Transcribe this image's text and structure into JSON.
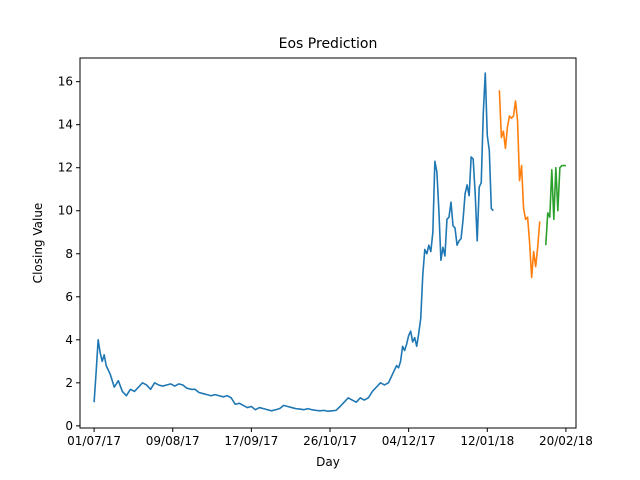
{
  "chart_data": {
    "type": "line",
    "title": "Eos Prediction",
    "xlabel": "Day",
    "ylabel": "Closing Value",
    "xlim": [
      "2017-06-24",
      "2018-02-25"
    ],
    "ylim": [
      -0.1,
      17.1
    ],
    "grid": false,
    "legend": "none",
    "x_ticks": [
      {
        "date": "2017-07-01",
        "label": "01/07/17"
      },
      {
        "date": "2017-08-09",
        "label": "09/08/17"
      },
      {
        "date": "2017-09-17",
        "label": "17/09/17"
      },
      {
        "date": "2017-10-26",
        "label": "26/10/17"
      },
      {
        "date": "2017-12-04",
        "label": "04/12/17"
      },
      {
        "date": "2018-01-12",
        "label": "12/01/18"
      },
      {
        "date": "2018-02-20",
        "label": "20/02/18"
      }
    ],
    "y_ticks": [
      0,
      2,
      4,
      6,
      8,
      10,
      12,
      14,
      16
    ],
    "series": [
      {
        "color": "#1f77b4",
        "points": [
          [
            "2017-07-01",
            1.1
          ],
          [
            "2017-07-02",
            2.5
          ],
          [
            "2017-07-03",
            4.0
          ],
          [
            "2017-07-04",
            3.4
          ],
          [
            "2017-07-05",
            3.0
          ],
          [
            "2017-07-06",
            3.3
          ],
          [
            "2017-07-07",
            2.8
          ],
          [
            "2017-07-09",
            2.4
          ],
          [
            "2017-07-11",
            1.8
          ],
          [
            "2017-07-13",
            2.1
          ],
          [
            "2017-07-15",
            1.6
          ],
          [
            "2017-07-17",
            1.4
          ],
          [
            "2017-07-19",
            1.7
          ],
          [
            "2017-07-21",
            1.6
          ],
          [
            "2017-07-23",
            1.8
          ],
          [
            "2017-07-25",
            2.0
          ],
          [
            "2017-07-27",
            1.9
          ],
          [
            "2017-07-29",
            1.7
          ],
          [
            "2017-07-31",
            2.0
          ],
          [
            "2017-08-02",
            1.9
          ],
          [
            "2017-08-04",
            1.85
          ],
          [
            "2017-08-06",
            1.9
          ],
          [
            "2017-08-08",
            1.95
          ],
          [
            "2017-08-10",
            1.85
          ],
          [
            "2017-08-12",
            1.95
          ],
          [
            "2017-08-14",
            1.9
          ],
          [
            "2017-08-16",
            1.75
          ],
          [
            "2017-08-18",
            1.7
          ],
          [
            "2017-08-20",
            1.7
          ],
          [
            "2017-08-22",
            1.55
          ],
          [
            "2017-08-24",
            1.5
          ],
          [
            "2017-08-26",
            1.45
          ],
          [
            "2017-08-28",
            1.4
          ],
          [
            "2017-08-30",
            1.45
          ],
          [
            "2017-09-01",
            1.4
          ],
          [
            "2017-09-03",
            1.35
          ],
          [
            "2017-09-05",
            1.4
          ],
          [
            "2017-09-07",
            1.3
          ],
          [
            "2017-09-09",
            1.0
          ],
          [
            "2017-09-11",
            1.05
          ],
          [
            "2017-09-13",
            0.95
          ],
          [
            "2017-09-15",
            0.85
          ],
          [
            "2017-09-17",
            0.9
          ],
          [
            "2017-09-19",
            0.75
          ],
          [
            "2017-09-21",
            0.85
          ],
          [
            "2017-09-23",
            0.8
          ],
          [
            "2017-09-25",
            0.75
          ],
          [
            "2017-09-27",
            0.7
          ],
          [
            "2017-09-29",
            0.75
          ],
          [
            "2017-10-01",
            0.8
          ],
          [
            "2017-10-03",
            0.95
          ],
          [
            "2017-10-05",
            0.9
          ],
          [
            "2017-10-07",
            0.85
          ],
          [
            "2017-10-09",
            0.8
          ],
          [
            "2017-10-11",
            0.78
          ],
          [
            "2017-10-13",
            0.75
          ],
          [
            "2017-10-15",
            0.8
          ],
          [
            "2017-10-17",
            0.75
          ],
          [
            "2017-10-19",
            0.72
          ],
          [
            "2017-10-21",
            0.7
          ],
          [
            "2017-10-23",
            0.72
          ],
          [
            "2017-10-25",
            0.68
          ],
          [
            "2017-10-27",
            0.7
          ],
          [
            "2017-10-29",
            0.72
          ],
          [
            "2017-10-31",
            0.9
          ],
          [
            "2017-11-02",
            1.1
          ],
          [
            "2017-11-04",
            1.3
          ],
          [
            "2017-11-06",
            1.2
          ],
          [
            "2017-11-08",
            1.1
          ],
          [
            "2017-11-10",
            1.3
          ],
          [
            "2017-11-12",
            1.2
          ],
          [
            "2017-11-14",
            1.3
          ],
          [
            "2017-11-16",
            1.6
          ],
          [
            "2017-11-18",
            1.8
          ],
          [
            "2017-11-20",
            2.0
          ],
          [
            "2017-11-22",
            1.9
          ],
          [
            "2017-11-24",
            2.0
          ],
          [
            "2017-11-26",
            2.4
          ],
          [
            "2017-11-28",
            2.8
          ],
          [
            "2017-11-29",
            2.7
          ],
          [
            "2017-11-30",
            3.0
          ],
          [
            "2017-12-01",
            3.7
          ],
          [
            "2017-12-02",
            3.5
          ],
          [
            "2017-12-03",
            3.8
          ],
          [
            "2017-12-04",
            4.2
          ],
          [
            "2017-12-05",
            4.4
          ],
          [
            "2017-12-06",
            3.9
          ],
          [
            "2017-12-07",
            4.1
          ],
          [
            "2017-12-08",
            3.7
          ],
          [
            "2017-12-09",
            4.3
          ],
          [
            "2017-12-10",
            5.0
          ],
          [
            "2017-12-11",
            7.0
          ],
          [
            "2017-12-12",
            8.2
          ],
          [
            "2017-12-13",
            8.0
          ],
          [
            "2017-12-14",
            8.4
          ],
          [
            "2017-12-15",
            8.1
          ],
          [
            "2017-12-16",
            9.0
          ],
          [
            "2017-12-17",
            12.3
          ],
          [
            "2017-12-18",
            11.8
          ],
          [
            "2017-12-19",
            10.0
          ],
          [
            "2017-12-20",
            7.7
          ],
          [
            "2017-12-21",
            8.3
          ],
          [
            "2017-12-22",
            7.9
          ],
          [
            "2017-12-23",
            9.6
          ],
          [
            "2017-12-24",
            9.7
          ],
          [
            "2017-12-25",
            10.4
          ],
          [
            "2017-12-26",
            9.3
          ],
          [
            "2017-12-27",
            9.2
          ],
          [
            "2017-12-28",
            8.4
          ],
          [
            "2017-12-29",
            8.6
          ],
          [
            "2017-12-30",
            8.7
          ],
          [
            "2017-12-31",
            9.6
          ],
          [
            "2018-01-01",
            10.8
          ],
          [
            "2018-01-02",
            11.2
          ],
          [
            "2018-01-03",
            10.7
          ],
          [
            "2018-01-04",
            12.5
          ],
          [
            "2018-01-05",
            12.4
          ],
          [
            "2018-01-06",
            10.8
          ],
          [
            "2018-01-07",
            8.6
          ],
          [
            "2018-01-08",
            11.1
          ],
          [
            "2018-01-09",
            11.3
          ],
          [
            "2018-01-10",
            14.5
          ],
          [
            "2018-01-11",
            16.4
          ],
          [
            "2018-01-12",
            13.5
          ],
          [
            "2018-01-13",
            12.8
          ],
          [
            "2018-01-14",
            10.1
          ],
          [
            "2018-01-15",
            10.0
          ]
        ]
      },
      {
        "color": "#ff7f0e",
        "points": [
          [
            "2018-01-18",
            15.6
          ],
          [
            "2018-01-19",
            13.4
          ],
          [
            "2018-01-20",
            13.7
          ],
          [
            "2018-01-21",
            12.9
          ],
          [
            "2018-01-22",
            13.9
          ],
          [
            "2018-01-23",
            14.4
          ],
          [
            "2018-01-24",
            14.3
          ],
          [
            "2018-01-25",
            14.4
          ],
          [
            "2018-01-26",
            15.1
          ],
          [
            "2018-01-27",
            14.2
          ],
          [
            "2018-01-28",
            11.4
          ],
          [
            "2018-01-29",
            12.1
          ],
          [
            "2018-01-30",
            10.1
          ],
          [
            "2018-01-31",
            9.6
          ],
          [
            "2018-02-01",
            9.7
          ],
          [
            "2018-02-02",
            8.5
          ],
          [
            "2018-02-03",
            6.9
          ],
          [
            "2018-02-04",
            8.1
          ],
          [
            "2018-02-05",
            7.4
          ],
          [
            "2018-02-06",
            8.3
          ],
          [
            "2018-02-07",
            9.5
          ]
        ]
      },
      {
        "color": "#2ca02c",
        "points": [
          [
            "2018-02-10",
            8.4
          ],
          [
            "2018-02-11",
            9.9
          ],
          [
            "2018-02-12",
            9.7
          ],
          [
            "2018-02-13",
            11.9
          ],
          [
            "2018-02-14",
            9.6
          ],
          [
            "2018-02-15",
            12.0
          ],
          [
            "2018-02-16",
            10.0
          ],
          [
            "2018-02-17",
            12.0
          ],
          [
            "2018-02-18",
            12.1
          ],
          [
            "2018-02-19",
            12.1
          ],
          [
            "2018-02-20",
            12.1
          ]
        ]
      }
    ]
  }
}
